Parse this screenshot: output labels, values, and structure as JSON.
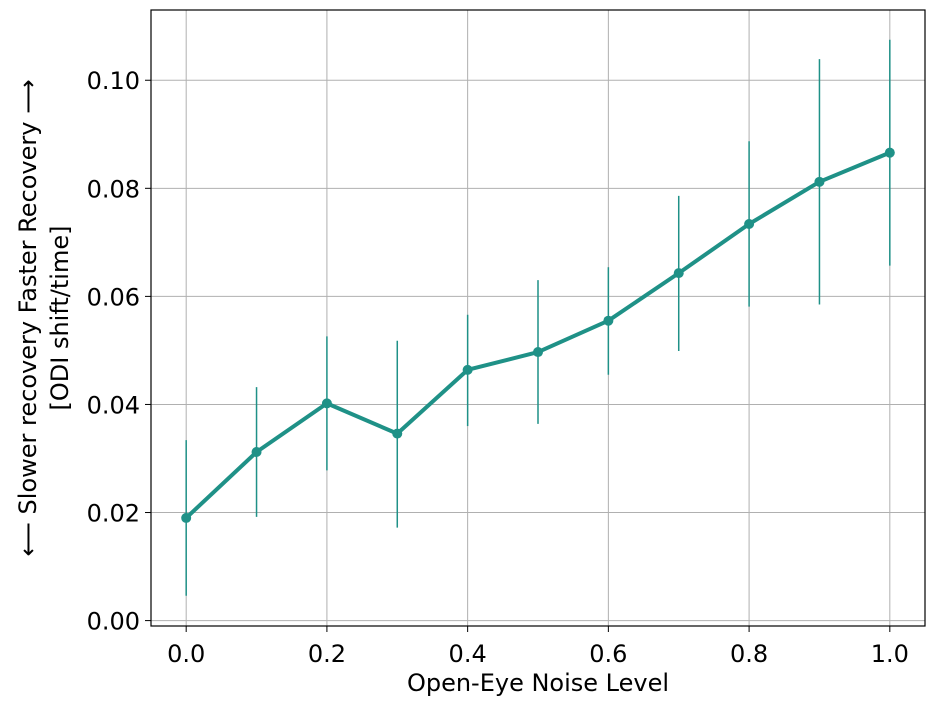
{
  "chart_data": {
    "type": "line",
    "title": "",
    "xlabel": "Open-Eye Noise Level",
    "ylabel_line1": "⟵  Slower recovery     Faster Recovery  ⟶",
    "ylabel_line2": "[ODI shift/time]",
    "xlim": [
      -0.05,
      1.05
    ],
    "ylim": [
      -0.001,
      0.113
    ],
    "xticks": [
      0.0,
      0.2,
      0.4,
      0.6,
      0.8,
      1.0
    ],
    "xtick_labels": [
      "0.0",
      "0.2",
      "0.4",
      "0.6",
      "0.8",
      "1.0"
    ],
    "yticks": [
      0.0,
      0.02,
      0.04,
      0.06,
      0.08,
      0.1
    ],
    "ytick_labels": [
      "0.00",
      "0.02",
      "0.04",
      "0.06",
      "0.08",
      "0.10"
    ],
    "grid": true,
    "color": "#1f9187",
    "series": [
      {
        "x": [
          0.0,
          0.1,
          0.2,
          0.3,
          0.4,
          0.5,
          0.6,
          0.7,
          0.8,
          0.9,
          1.0
        ],
        "y": [
          0.019,
          0.0312,
          0.0402,
          0.0346,
          0.0464,
          0.0497,
          0.0555,
          0.0643,
          0.0734,
          0.0812,
          0.0866
        ],
        "err_low": [
          0.0046,
          0.0192,
          0.0278,
          0.0172,
          0.036,
          0.0364,
          0.0455,
          0.0499,
          0.0581,
          0.0585,
          0.0657
        ],
        "err_high": [
          0.0334,
          0.0432,
          0.0526,
          0.0518,
          0.0566,
          0.063,
          0.0654,
          0.0786,
          0.0887,
          0.1039,
          0.1075
        ]
      }
    ]
  }
}
